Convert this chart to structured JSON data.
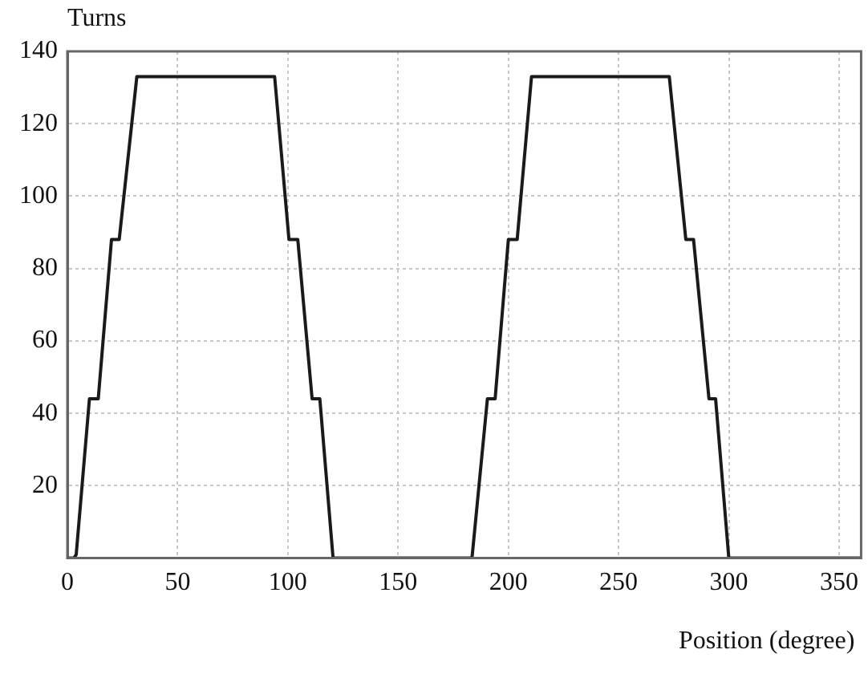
{
  "chart_data": {
    "type": "line",
    "xlabel": "Position (degree)",
    "ylabel": "Turns",
    "x": [
      0,
      3,
      4,
      10,
      14,
      20,
      23.5,
      31.5,
      94,
      100.5,
      104.5,
      111,
      114.5,
      120.5,
      183.5,
      190.5,
      194,
      200,
      204,
      210.5,
      273,
      280.5,
      284,
      291,
      294,
      300,
      360
    ],
    "series": [
      {
        "color": "#1a1a1a",
        "values": [
          0,
          0,
          1,
          44,
          44,
          88,
          88,
          133,
          133,
          88,
          88,
          44,
          44,
          0,
          0,
          44,
          44,
          88,
          88,
          133,
          133,
          88,
          88,
          44,
          44,
          0,
          0
        ]
      }
    ],
    "xlim": [
      0,
      360
    ],
    "xticks": [
      0,
      50,
      100,
      150,
      200,
      250,
      300,
      350
    ],
    "ylim": [
      0,
      140
    ],
    "yticks": [
      20,
      40,
      60,
      80,
      100,
      120,
      140
    ],
    "grid": true,
    "legend": false,
    "marker": "none",
    "line_style": "solid"
  }
}
